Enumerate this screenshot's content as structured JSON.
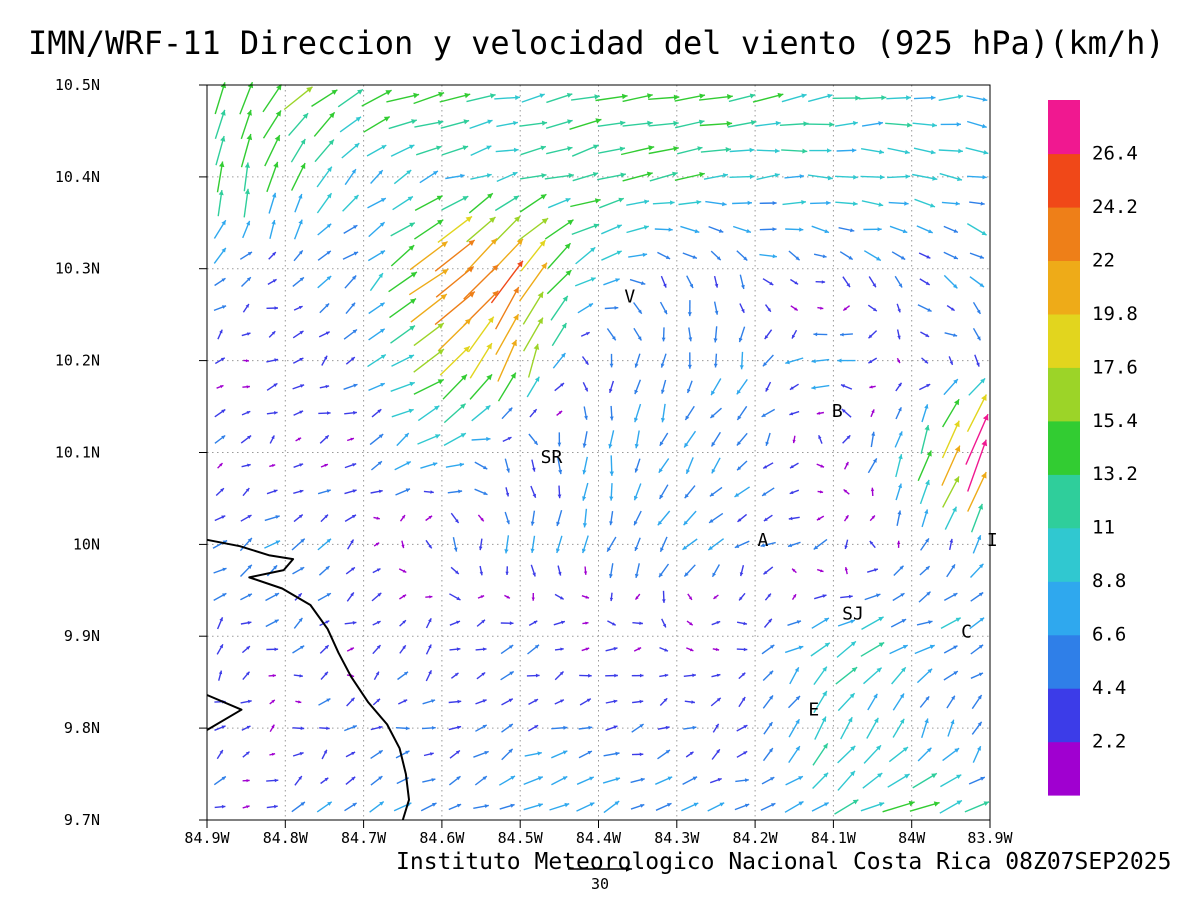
{
  "title": "IMN/WRF-11 Direccion y velocidad del viento (925 hPa)(km/h)",
  "caption": "Instituto Meteorologico Nacional Costa Rica 08Z07SEP2025",
  "chart_data": {
    "type": "vector_field",
    "title": "IMN/WRF-11 Direccion y velocidad del viento (925 hPa)(km/h)",
    "caption": "Instituto Meteorologico Nacional Costa Rica 08Z07SEP2025",
    "units": "km/h",
    "pressure_level": "925 hPa",
    "x_axis": {
      "ticks": [
        "84.9W",
        "84.8W",
        "84.7W",
        "84.6W",
        "84.5W",
        "84.4W",
        "84.3W",
        "84.2W",
        "84.1W",
        "84W",
        "83.9W"
      ],
      "lons": [
        -84.9,
        -84.8,
        -84.7,
        -84.6,
        -84.5,
        -84.4,
        -84.3,
        -84.2,
        -84.1,
        -84,
        -83.9
      ]
    },
    "y_axis": {
      "ticks": [
        "10.5N",
        "10.4N",
        "10.3N",
        "10.2N",
        "10.1N",
        "10N",
        "9.9N",
        "9.8N",
        "9.7N"
      ],
      "lats": [
        10.5,
        10.4,
        10.3,
        10.2,
        10.1,
        10,
        9.9,
        9.8,
        9.7
      ]
    },
    "colorbar": {
      "levels": [
        2.2,
        4.4,
        6.6,
        8.8,
        11,
        13.2,
        15.4,
        17.6,
        19.8,
        22,
        24.2,
        26.4
      ],
      "colors": [
        "#a000d0",
        "#3c3ce8",
        "#2f7fe8",
        "#2fa8ee",
        "#30c8d0",
        "#2fce9b",
        "#32cc32",
        "#9cd428",
        "#e2d51e",
        "#eeab18",
        "#ee7f18",
        "#f04818",
        "#f01890"
      ]
    },
    "reference_arrow": {
      "value": 30,
      "label": "30"
    },
    "stations": [
      {
        "label": "V",
        "lon": -84.36,
        "lat": 10.27
      },
      {
        "label": "SR",
        "lon": -84.46,
        "lat": 10.095
      },
      {
        "label": "B",
        "lon": -84.095,
        "lat": 10.145
      },
      {
        "label": "A",
        "lon": -84.19,
        "lat": 10.005
      },
      {
        "label": "I",
        "lon": -83.897,
        "lat": 10.005
      },
      {
        "label": "SJ",
        "lon": -84.075,
        "lat": 9.925
      },
      {
        "label": "C",
        "lon": -83.93,
        "lat": 9.905
      },
      {
        "label": "E",
        "lon": -84.125,
        "lat": 9.82
      }
    ],
    "coastline": [
      [
        -84.9,
        10.005
      ],
      [
        -84.858,
        9.998
      ],
      [
        -84.82,
        9.988
      ],
      [
        -84.79,
        9.984
      ],
      [
        -84.802,
        9.972
      ],
      [
        -84.846,
        9.964
      ],
      [
        -84.804,
        9.952
      ],
      [
        -84.768,
        9.934
      ],
      [
        -84.746,
        9.908
      ],
      [
        -84.732,
        9.882
      ],
      [
        -84.716,
        9.856
      ],
      [
        -84.694,
        9.828
      ],
      [
        -84.67,
        9.804
      ],
      [
        -84.654,
        9.778
      ],
      [
        -84.646,
        9.75
      ],
      [
        -84.642,
        9.722
      ],
      [
        -84.65,
        9.7
      ]
    ],
    "coastline_extra": [
      [
        -84.9,
        9.836
      ],
      [
        -84.856,
        9.82
      ],
      [
        -84.9,
        9.798
      ]
    ],
    "wind_grid": {
      "units": "km/h",
      "lons": [
        -84.9,
        -84.8,
        -84.7,
        -84.6,
        -84.5,
        -84.4,
        -84.3,
        -84.2,
        -84.1,
        -84,
        -83.9
      ],
      "lats": [
        10.5,
        10.4,
        10.3,
        10.2,
        10.1,
        10,
        9.9,
        9.8,
        9.7
      ],
      "uv_kmh": [
        [
          [
            3,
            14
          ],
          [
            12,
            12
          ],
          [
            13,
            6
          ],
          [
            15,
            3
          ],
          [
            11,
            2
          ],
          [
            14,
            3
          ],
          [
            14,
            2
          ],
          [
            13,
            2
          ],
          [
            11,
            1
          ],
          [
            10,
            1
          ],
          [
            9,
            0
          ]
        ],
        [
          [
            2,
            15
          ],
          [
            4,
            13
          ],
          [
            6,
            5
          ],
          [
            8,
            3
          ],
          [
            9,
            2
          ],
          [
            13,
            4
          ],
          [
            12,
            2
          ],
          [
            10,
            1
          ],
          [
            9,
            0
          ],
          [
            9,
            -1
          ],
          [
            8,
            -2
          ]
        ],
        [
          [
            5,
            3
          ],
          [
            3,
            2
          ],
          [
            4,
            4
          ],
          [
            20,
            15
          ],
          [
            14,
            20
          ],
          [
            8,
            3
          ],
          [
            2,
            -4
          ],
          [
            4,
            -3
          ],
          [
            5,
            -2
          ],
          [
            4,
            -3
          ],
          [
            5,
            -4
          ]
        ],
        [
          [
            2,
            1
          ],
          [
            3,
            1
          ],
          [
            4,
            2
          ],
          [
            16,
            11
          ],
          [
            6,
            19
          ],
          [
            1,
            -5
          ],
          [
            -1,
            -6
          ],
          [
            -2,
            -5
          ],
          [
            -9,
            1
          ],
          [
            2,
            -2
          ],
          [
            3,
            -3
          ]
        ],
        [
          [
            2,
            1
          ],
          [
            2,
            1
          ],
          [
            3,
            2
          ],
          [
            8,
            4
          ],
          [
            2,
            -5
          ],
          [
            0,
            -7
          ],
          [
            -3,
            -5
          ],
          [
            -4,
            -4
          ],
          [
            2,
            2
          ],
          [
            4,
            10
          ],
          [
            12,
            34
          ]
        ],
        [
          [
            6,
            4
          ],
          [
            5,
            3
          ],
          [
            2,
            2
          ],
          [
            1,
            -3
          ],
          [
            -1,
            -6
          ],
          [
            -2,
            -6
          ],
          [
            -4,
            -5
          ],
          [
            -5,
            -3
          ],
          [
            -3,
            -2
          ],
          [
            2,
            3
          ],
          [
            3,
            6
          ]
        ],
        [
          [
            3,
            2
          ],
          [
            3,
            2
          ],
          [
            2,
            1
          ],
          [
            3,
            2
          ],
          [
            4,
            2
          ],
          [
            3,
            1
          ],
          [
            2,
            -1
          ],
          [
            3,
            2
          ],
          [
            10,
            5
          ],
          [
            8,
            3
          ],
          [
            6,
            2
          ]
        ],
        [
          [
            2,
            1
          ],
          [
            2,
            1
          ],
          [
            3,
            1
          ],
          [
            4,
            2
          ],
          [
            5,
            2
          ],
          [
            4,
            2
          ],
          [
            3,
            1
          ],
          [
            2,
            2
          ],
          [
            5,
            11
          ],
          [
            3,
            7
          ],
          [
            2,
            5
          ]
        ],
        [
          [
            3,
            2
          ],
          [
            4,
            2
          ],
          [
            5,
            3
          ],
          [
            6,
            3
          ],
          [
            7,
            3
          ],
          [
            7,
            3
          ],
          [
            6,
            3
          ],
          [
            7,
            2
          ],
          [
            9,
            4
          ],
          [
            15,
            4
          ],
          [
            10,
            3
          ]
        ]
      ]
    },
    "render": {
      "cols": 30,
      "rows": 28,
      "jitter_seed": 11,
      "jitter_amp": 1.8
    }
  }
}
